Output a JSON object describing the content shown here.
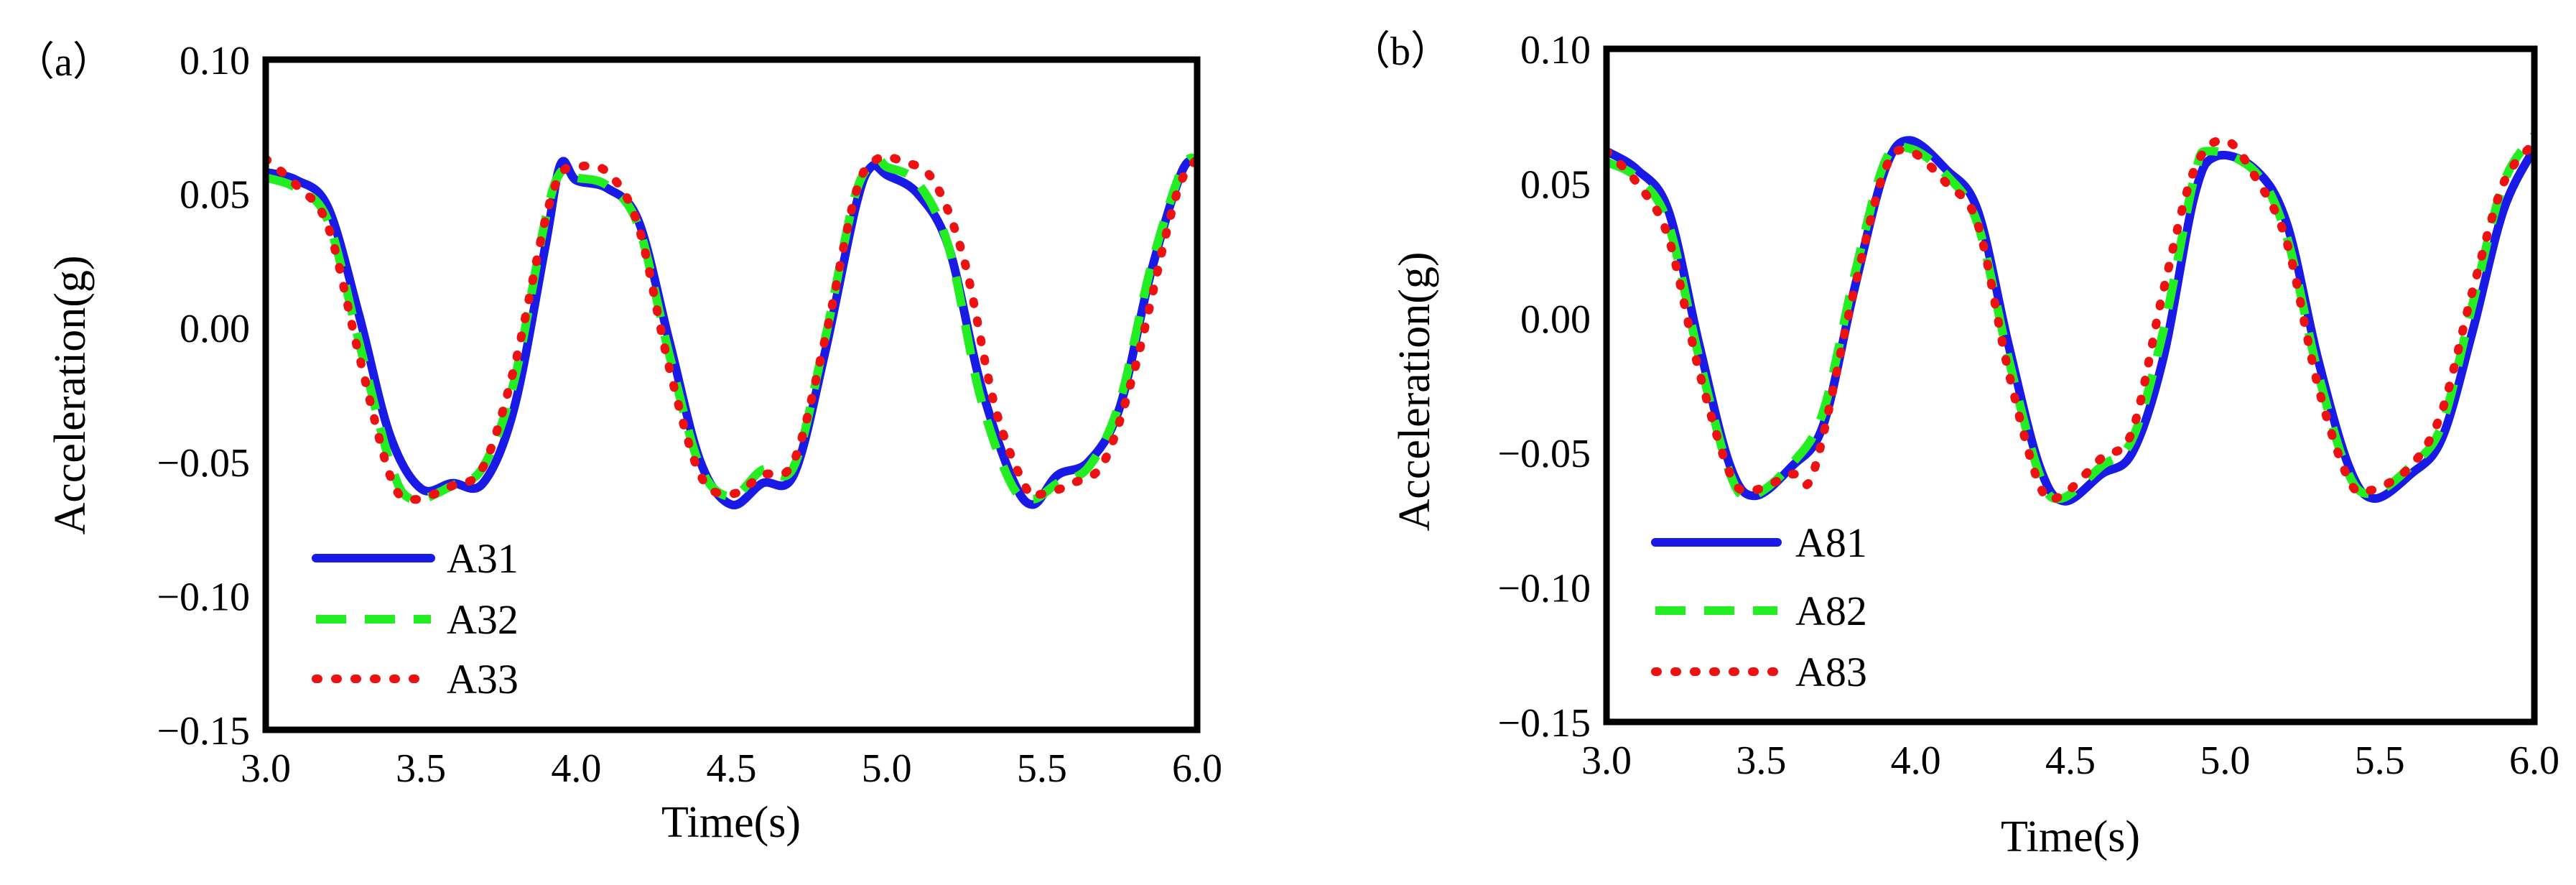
{
  "chart_data": [
    {
      "type": "line",
      "panel_label": "（a）",
      "title": "",
      "xlabel": "Time(s)",
      "ylabel": "Acceleration(g)",
      "xlim": [
        3.0,
        6.0
      ],
      "ylim": [
        -0.15,
        0.1
      ],
      "xticks": [
        "3.0",
        "3.5",
        "4.0",
        "4.5",
        "5.0",
        "5.5",
        "6.0"
      ],
      "yticks": [
        "0.10",
        "0.05",
        "0.00",
        "−0.05",
        "−0.10",
        "−0.15"
      ],
      "legend_position": "bottom-left",
      "series": [
        {
          "name": "A31",
          "color": "#1a1ae6",
          "style": "solid",
          "x": [
            3.0,
            3.1,
            3.2,
            3.3,
            3.4,
            3.5,
            3.6,
            3.7,
            3.8,
            3.9,
            3.95,
            4.0,
            4.1,
            4.2,
            4.3,
            4.4,
            4.5,
            4.6,
            4.7,
            4.8,
            4.9,
            4.95,
            5.0,
            5.1,
            5.2,
            5.3,
            5.4,
            5.47,
            5.55,
            5.65,
            5.75,
            5.85,
            5.95,
            6.0
          ],
          "y": [
            0.058,
            0.055,
            0.045,
            0.005,
            -0.04,
            -0.06,
            -0.058,
            -0.058,
            -0.03,
            0.03,
            0.061,
            0.055,
            0.052,
            0.04,
            -0.005,
            -0.05,
            -0.066,
            -0.058,
            -0.055,
            -0.01,
            0.045,
            0.06,
            0.057,
            0.05,
            0.03,
            -0.02,
            -0.055,
            -0.066,
            -0.055,
            -0.05,
            -0.03,
            0.02,
            0.058,
            0.062
          ]
        },
        {
          "name": "A32",
          "color": "#22ee22",
          "style": "dashed",
          "x": [
            3.0,
            3.1,
            3.2,
            3.3,
            3.4,
            3.47,
            3.6,
            3.7,
            3.8,
            3.9,
            3.95,
            4.0,
            4.1,
            4.2,
            4.3,
            4.4,
            4.5,
            4.6,
            4.7,
            4.8,
            4.9,
            4.97,
            5.0,
            5.1,
            5.2,
            5.3,
            5.4,
            5.47,
            5.55,
            5.65,
            5.75,
            5.85,
            5.95,
            6.0
          ],
          "y": [
            0.056,
            0.052,
            0.04,
            -0.005,
            -0.05,
            -0.064,
            -0.059,
            -0.052,
            -0.02,
            0.04,
            0.058,
            0.056,
            0.053,
            0.038,
            -0.01,
            -0.052,
            -0.063,
            -0.053,
            -0.052,
            -0.005,
            0.05,
            0.062,
            0.06,
            0.054,
            0.03,
            -0.025,
            -0.058,
            -0.064,
            -0.058,
            -0.052,
            -0.028,
            0.022,
            0.059,
            0.063
          ]
        },
        {
          "name": "A33",
          "color": "#ee1111",
          "style": "dotted",
          "x": [
            3.0,
            3.1,
            3.2,
            3.3,
            3.4,
            3.47,
            3.6,
            3.7,
            3.8,
            3.9,
            3.95,
            4.0,
            4.1,
            4.2,
            4.3,
            4.4,
            4.5,
            4.6,
            4.7,
            4.8,
            4.9,
            4.97,
            5.05,
            5.15,
            5.25,
            5.35,
            5.45,
            5.5,
            5.6,
            5.7,
            5.8,
            5.9,
            5.95,
            6.0
          ],
          "y": [
            0.063,
            0.053,
            0.038,
            -0.01,
            -0.055,
            -0.064,
            -0.059,
            -0.052,
            -0.015,
            0.04,
            0.057,
            0.06,
            0.058,
            0.038,
            -0.015,
            -0.055,
            -0.062,
            -0.055,
            -0.05,
            -0.005,
            0.05,
            0.063,
            0.062,
            0.055,
            0.025,
            -0.03,
            -0.06,
            -0.062,
            -0.058,
            -0.05,
            -0.015,
            0.035,
            0.055,
            0.063
          ]
        }
      ]
    },
    {
      "type": "line",
      "panel_label": "（b）",
      "title": "",
      "xlabel": "Time(s)",
      "ylabel": "Acceleration(g)",
      "xlim": [
        3.0,
        6.0
      ],
      "ylim": [
        -0.15,
        0.1
      ],
      "xticks": [
        "3.0",
        "3.5",
        "4.0",
        "4.5",
        "5.0",
        "5.5",
        "6.0"
      ],
      "yticks": [
        "0.10",
        "0.05",
        "0.00",
        "−0.05",
        "−0.10",
        "−0.15"
      ],
      "legend_position": "bottom-left",
      "series": [
        {
          "name": "A81",
          "color": "#1a1ae6",
          "style": "solid",
          "x": [
            3.0,
            3.1,
            3.2,
            3.3,
            3.4,
            3.48,
            3.6,
            3.7,
            3.8,
            3.9,
            3.98,
            4.1,
            4.2,
            4.3,
            4.4,
            4.48,
            4.6,
            4.7,
            4.8,
            4.9,
            4.97,
            5.1,
            5.2,
            5.3,
            5.4,
            5.48,
            5.6,
            5.7,
            5.8,
            5.9,
            6.0
          ],
          "y": [
            0.062,
            0.055,
            0.04,
            -0.01,
            -0.055,
            -0.066,
            -0.055,
            -0.04,
            0.01,
            0.055,
            0.066,
            0.055,
            0.04,
            -0.01,
            -0.055,
            -0.068,
            -0.058,
            -0.05,
            -0.015,
            0.045,
            0.06,
            0.055,
            0.035,
            -0.015,
            -0.055,
            -0.067,
            -0.058,
            -0.045,
            -0.005,
            0.04,
            0.063
          ]
        },
        {
          "name": "A82",
          "color": "#22ee22",
          "style": "dashed",
          "x": [
            3.0,
            3.1,
            3.2,
            3.3,
            3.4,
            3.47,
            3.6,
            3.7,
            3.8,
            3.9,
            3.98,
            4.1,
            4.2,
            4.3,
            4.4,
            4.47,
            4.6,
            4.7,
            4.8,
            4.9,
            4.95,
            5.1,
            5.2,
            5.3,
            5.4,
            5.48,
            5.6,
            5.7,
            5.8,
            5.9,
            6.0
          ],
          "y": [
            0.058,
            0.052,
            0.035,
            -0.015,
            -0.058,
            -0.066,
            -0.054,
            -0.035,
            0.015,
            0.058,
            0.063,
            0.053,
            0.035,
            -0.015,
            -0.058,
            -0.067,
            -0.055,
            -0.045,
            -0.005,
            0.052,
            0.062,
            0.054,
            0.03,
            -0.02,
            -0.058,
            -0.065,
            -0.055,
            -0.04,
            0.005,
            0.05,
            0.068
          ]
        },
        {
          "name": "A83",
          "color": "#ee1111",
          "style": "dotted",
          "x": [
            3.0,
            3.1,
            3.2,
            3.3,
            3.4,
            3.47,
            3.6,
            3.67,
            3.8,
            3.9,
            3.98,
            4.1,
            4.2,
            4.3,
            4.4,
            4.47,
            4.6,
            4.7,
            4.8,
            4.9,
            5.0,
            5.1,
            5.2,
            5.3,
            5.4,
            5.47,
            5.6,
            5.7,
            5.8,
            5.9,
            6.0
          ],
          "y": [
            0.062,
            0.05,
            0.03,
            -0.02,
            -0.058,
            -0.064,
            -0.058,
            -0.057,
            0.01,
            0.055,
            0.062,
            0.05,
            0.035,
            -0.02,
            -0.062,
            -0.066,
            -0.052,
            -0.042,
            0.01,
            0.055,
            0.066,
            0.052,
            0.028,
            -0.025,
            -0.06,
            -0.064,
            -0.055,
            -0.035,
            0.01,
            0.05,
            0.065
          ]
        }
      ]
    }
  ]
}
